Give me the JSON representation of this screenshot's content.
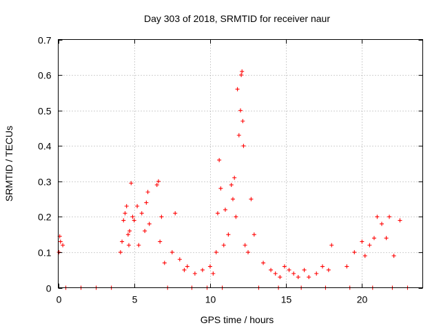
{
  "chart_data": {
    "type": "scatter",
    "title": "Day 303 of 2018, SRMTID for receiver naur",
    "xlabel": "GPS time / hours",
    "ylabel": "SRMTID / TECUs",
    "xlim": [
      0,
      24
    ],
    "ylim": [
      0,
      0.7
    ],
    "xticks": [
      0,
      5,
      10,
      15,
      20
    ],
    "xtick_labels": [
      "0",
      "5",
      "10",
      "15",
      "20"
    ],
    "yticks": [
      0,
      0.1,
      0.2,
      0.3,
      0.4,
      0.5,
      0.6,
      0.7
    ],
    "ytick_labels": [
      "0",
      "0.1",
      "0.2",
      "0.3",
      "0.4",
      "0.5",
      "0.6",
      "0.7"
    ],
    "grid": true,
    "marker": "+",
    "color": "#ff0000",
    "series": [
      {
        "name": "SRMTID",
        "x": [
          0.05,
          0.1,
          0.15,
          0.3,
          4.1,
          4.2,
          4.3,
          4.4,
          4.5,
          4.6,
          4.65,
          4.7,
          4.8,
          4.9,
          5.0,
          5.2,
          5.3,
          5.5,
          5.7,
          5.8,
          5.9,
          6.0,
          6.5,
          6.6,
          6.7,
          6.8,
          7.0,
          7.5,
          7.7,
          8.0,
          8.3,
          8.5,
          9.0,
          9.5,
          10.0,
          10.2,
          10.4,
          10.5,
          10.6,
          10.7,
          10.9,
          11.0,
          11.2,
          11.4,
          11.5,
          11.6,
          11.7,
          11.8,
          11.9,
          12.0,
          12.05,
          12.1,
          12.15,
          12.2,
          12.3,
          12.5,
          12.7,
          12.9,
          13.5,
          14.0,
          14.3,
          14.6,
          14.9,
          15.2,
          15.5,
          15.8,
          16.2,
          16.5,
          17.0,
          17.4,
          17.8,
          18.0,
          19.0,
          19.5,
          20.0,
          20.2,
          20.5,
          20.8,
          21.0,
          21.3,
          21.6,
          21.8,
          22.1,
          22.5,
          0.5,
          1.5,
          2.5,
          3.5,
          7.2,
          8.8,
          9.8,
          10.8,
          13.2,
          14.5,
          16.0,
          17.6,
          19.2,
          20.7,
          22.0,
          23.0
        ],
        "y": [
          0.1,
          0.145,
          0.13,
          0.12,
          0.1,
          0.13,
          0.19,
          0.21,
          0.23,
          0.15,
          0.12,
          0.16,
          0.295,
          0.2,
          0.19,
          0.23,
          0.12,
          0.21,
          0.16,
          0.24,
          0.27,
          0.18,
          0.29,
          0.3,
          0.13,
          0.2,
          0.07,
          0.1,
          0.21,
          0.08,
          0.05,
          0.06,
          0.04,
          0.05,
          0.06,
          0.04,
          0.1,
          0.21,
          0.36,
          0.28,
          0.12,
          0.22,
          0.15,
          0.29,
          0.25,
          0.31,
          0.2,
          0.56,
          0.43,
          0.5,
          0.6,
          0.61,
          0.47,
          0.4,
          0.12,
          0.1,
          0.25,
          0.15,
          0.07,
          0.05,
          0.04,
          0.03,
          0.06,
          0.05,
          0.04,
          0.03,
          0.05,
          0.03,
          0.04,
          0.06,
          0.05,
          0.12,
          0.06,
          0.1,
          0.13,
          0.09,
          0.12,
          0.14,
          0.2,
          0.18,
          0.14,
          0.2,
          0.09,
          0.19,
          0,
          0,
          0,
          0,
          0,
          0,
          0,
          0,
          0,
          0,
          0,
          0,
          0,
          0,
          0,
          0
        ]
      }
    ]
  }
}
